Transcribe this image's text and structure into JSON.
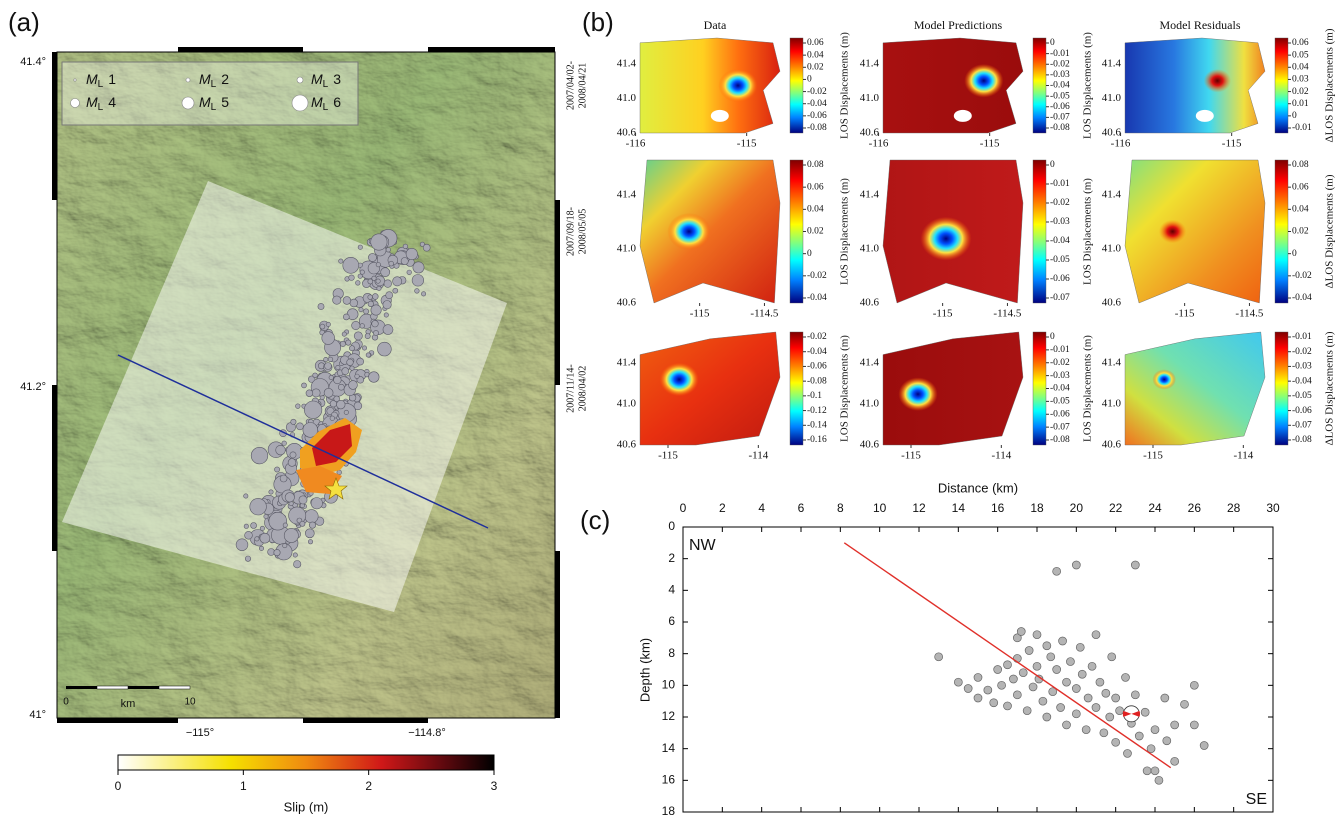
{
  "panels": {
    "a": {
      "label": "(a)",
      "lat_ticks": [
        "41.4°",
        "41.2°",
        "41°"
      ],
      "lon_ticks": [
        "−115°",
        "−114.8°"
      ],
      "legend": {
        "symbol": "M",
        "subscript": "L",
        "magnitudes": [
          1,
          2,
          3,
          4,
          5,
          6
        ]
      },
      "scale_bar": {
        "start": "0",
        "unit": "km",
        "end": "10"
      },
      "colorbar": {
        "title": "Slip (m)",
        "ticks": [
          0,
          1,
          2,
          3
        ]
      }
    },
    "b": {
      "label": "(b)",
      "columns": [
        {
          "title": "Data",
          "colorbar_label": "LOS Displacements (m)"
        },
        {
          "title": "Model Predictions",
          "colorbar_label": "LOS Displacements (m)"
        },
        {
          "title": "Model Residuals",
          "colorbar_label": "ΔLOS Displacements (m)"
        }
      ],
      "lat_ticks": [
        {
          "value": 41.4,
          "label": "41.4"
        },
        {
          "value": 41,
          "label": "41.0"
        },
        {
          "value": 40.6,
          "label": "40.6"
        }
      ],
      "rows": [
        {
          "period": [
            "2007/04/02-",
            "2008/04/21"
          ],
          "xlim": [
            -115.96,
            -114.7
          ],
          "ylim": [
            40.6,
            41.7
          ],
          "xticks": [
            -116,
            -115
          ],
          "colorbar_ticks": [
            [
              0.06,
              0.04,
              0.02,
              0,
              -0.02,
              -0.04,
              -0.06,
              -0.08
            ],
            [
              0,
              -0.01,
              -0.02,
              -0.03,
              -0.04,
              -0.05,
              -0.06,
              -0.07,
              -0.08
            ],
            [
              0.06,
              0.05,
              0.04,
              0.03,
              0.02,
              0.01,
              0,
              -0.01
            ]
          ]
        },
        {
          "period": [
            "2007/09/18-",
            "2008/05/05"
          ],
          "xlim": [
            -115.46,
            -114.38
          ],
          "ylim": [
            40.6,
            41.66
          ],
          "xticks": [
            -115,
            -114.5
          ],
          "colorbar_ticks": [
            [
              0.08,
              0.06,
              0.04,
              0.02,
              0,
              -0.02,
              -0.04
            ],
            [
              0,
              -0.01,
              -0.02,
              -0.03,
              -0.04,
              -0.05,
              -0.06,
              -0.07
            ],
            [
              0.08,
              0.06,
              0.04,
              0.02,
              0,
              -0.02,
              -0.04
            ]
          ]
        },
        {
          "period": [
            "2007/11/14-",
            "2008/04/02"
          ],
          "xlim": [
            -115.31,
            -113.76
          ],
          "ylim": [
            40.6,
            41.7
          ],
          "xticks": [
            -115,
            -114
          ],
          "colorbar_ticks": [
            [
              -0.02,
              -0.04,
              -0.06,
              -0.08,
              -0.1,
              -0.12,
              -0.14,
              -0.16
            ],
            [
              0,
              -0.01,
              -0.02,
              -0.03,
              -0.04,
              -0.05,
              -0.06,
              -0.07,
              -0.08
            ],
            [
              -0.01,
              -0.02,
              -0.03,
              -0.04,
              -0.05,
              -0.06,
              -0.07,
              -0.08
            ]
          ]
        }
      ]
    }
  },
  "chart_data": {
    "type": "scatter",
    "label": "(c)",
    "x_label": "Distance (km)",
    "y_label": "Depth (km)",
    "annotations": [
      "NW",
      "SE"
    ],
    "xlim": [
      0,
      30
    ],
    "xticks": [
      0,
      2,
      4,
      6,
      8,
      10,
      12,
      14,
      16,
      18,
      20,
      22,
      24,
      26,
      28,
      30
    ],
    "ylim": [
      0,
      18
    ],
    "yticks": [
      0,
      2,
      4,
      6,
      8,
      10,
      12,
      14,
      16,
      18
    ],
    "y_inverted": true,
    "color": "#b4b4b4",
    "x": [
      13,
      14,
      14.5,
      15,
      15,
      15.5,
      15.8,
      16,
      16.2,
      16.5,
      16.5,
      16.8,
      17,
      17,
      17,
      17.2,
      17.3,
      17.5,
      17.6,
      17.8,
      18,
      18,
      18.1,
      18.3,
      18.5,
      18.5,
      18.7,
      18.8,
      19,
      19,
      19.2,
      19.3,
      19.5,
      19.5,
      19.7,
      20,
      20,
      20,
      20.2,
      20.3,
      20.5,
      20.6,
      20.8,
      21,
      21,
      21.2,
      21.4,
      21.5,
      21.7,
      21.8,
      22,
      22,
      22.2,
      22.5,
      22.6,
      22.8,
      23,
      23,
      23.2,
      23.5,
      23.6,
      23.8,
      24,
      24.2,
      24.5,
      24.6,
      25,
      25,
      25.5,
      26,
      26,
      26.5,
      24
    ],
    "y": [
      8.2,
      9.8,
      10.2,
      9.5,
      10.8,
      10.3,
      11.1,
      9,
      10,
      8.7,
      11.3,
      9.6,
      7,
      8.3,
      10.6,
      6.6,
      9.2,
      11.6,
      7.8,
      10.1,
      6.8,
      8.8,
      9.6,
      11,
      7.5,
      12,
      8.2,
      10.4,
      9,
      2.8,
      11.4,
      7.2,
      9.8,
      12.5,
      8.5,
      2.4,
      10.2,
      11.8,
      7.6,
      9.3,
      12.8,
      10.8,
      8.8,
      11.4,
      6.8,
      9.8,
      13,
      10.5,
      12,
      8.2,
      10.8,
      13.6,
      11.6,
      9.5,
      14.3,
      12.4,
      2.4,
      10.6,
      13.2,
      11.7,
      15.4,
      14,
      12.8,
      16,
      10.8,
      13.5,
      12.5,
      14.8,
      11.2,
      10,
      12.5,
      13.8,
      15.4
    ],
    "fault_trace": {
      "x": [
        8.2,
        24.8
      ],
      "y": [
        1,
        15.2
      ],
      "color": "#e0302a"
    },
    "mainshock": {
      "x": 22.8,
      "y": 11.8
    }
  }
}
